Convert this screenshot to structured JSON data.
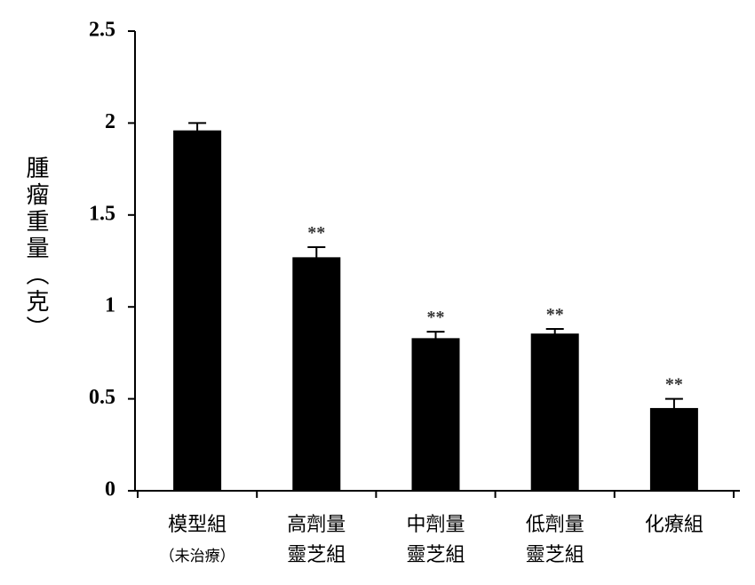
{
  "chart_data": {
    "type": "bar",
    "y_label": "腫瘤重量（克）",
    "categories": [
      [
        "模型組",
        "（未治療）"
      ],
      [
        "高劑量",
        "靈芝組"
      ],
      [
        "中劑量",
        "靈芝組"
      ],
      [
        "低劑量",
        "靈芝組"
      ],
      [
        "化療組"
      ]
    ],
    "values": [
      1.96,
      1.27,
      0.83,
      0.855,
      0.45
    ],
    "errors": [
      0.04,
      0.055,
      0.035,
      0.025,
      0.05
    ],
    "annotations": [
      null,
      "**",
      "**",
      "**",
      "**"
    ],
    "color": "#000000",
    "ylim": [
      0,
      2.5
    ],
    "yticks": [
      0,
      0.5,
      1,
      1.5,
      2,
      2.5
    ],
    "grid": false
  }
}
